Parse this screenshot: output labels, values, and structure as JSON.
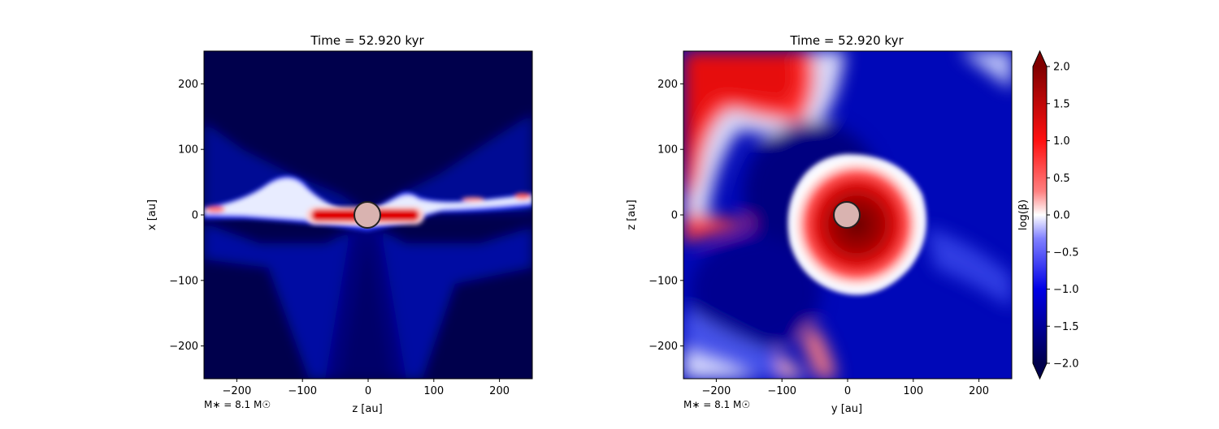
{
  "chart_data": [
    {
      "type": "heatmap",
      "title": "Time = 52.920 kyr",
      "xlabel": "z [au]",
      "ylabel": "x [au]",
      "xlim": [
        -250,
        250
      ],
      "ylim": [
        -250,
        250
      ],
      "xticks": [
        -200,
        -100,
        0,
        100,
        200
      ],
      "yticks": [
        -200,
        -100,
        0,
        100,
        200
      ],
      "xtick_labels": [
        "−200",
        "−100",
        "0",
        "100",
        "200"
      ],
      "ytick_labels": [
        "−200",
        "−100",
        "0",
        "100",
        "200"
      ],
      "annotation": "M$_*$ = 8.1 M$_\\odot$",
      "annotation_display": "M∗ = 8.1 M☉",
      "star": {
        "x": 0,
        "y": 0,
        "radius": 20
      },
      "description": "edge-on slice: thin midplane disk with high beta (red) core near star, blue outflow cavity walls, low beta (dark navy) elsewhere"
    },
    {
      "type": "heatmap",
      "title": "Time = 52.920 kyr",
      "xlabel": "y [au]",
      "ylabel": "z [au]",
      "xlim": [
        -250,
        250
      ],
      "ylim": [
        -250,
        250
      ],
      "xticks": [
        -200,
        -100,
        0,
        100,
        200
      ],
      "yticks": [
        -200,
        -100,
        0,
        100,
        200
      ],
      "xtick_labels": [
        "−200",
        "−100",
        "0",
        "100",
        "200"
      ],
      "ytick_labels": [
        "−200",
        "−100",
        "0",
        "100",
        "200"
      ],
      "annotation": "M$_*$ = 8.1 M$_\\odot$",
      "annotation_display": "M∗ = 8.1 M☉",
      "star": {
        "x": 0,
        "y": 0,
        "radius": 20
      },
      "description": "face-on slice: large high beta (dark red) disk around star, white boundary, blue surroundings, red region at top-left"
    }
  ],
  "colorbar": {
    "label": "log(β)",
    "range": [
      -2.0,
      2.0
    ],
    "ticks": [
      2.0,
      1.5,
      1.0,
      0.5,
      0.0,
      -0.5,
      -1.0,
      -1.5,
      -2.0
    ],
    "tick_labels": [
      "2.0",
      "1.5",
      "1.0",
      "0.5",
      "0.0",
      "−0.5",
      "−1.0",
      "−1.5",
      "−2.0"
    ],
    "colormap": "seismic",
    "extend": "both"
  },
  "colors": {
    "navy": "#00004c",
    "blue": "#0000e6",
    "white": "#f5f5ff",
    "red": "#ff2a2a",
    "darkred": "#8c0000",
    "star_fill": "#d9b3b0"
  }
}
